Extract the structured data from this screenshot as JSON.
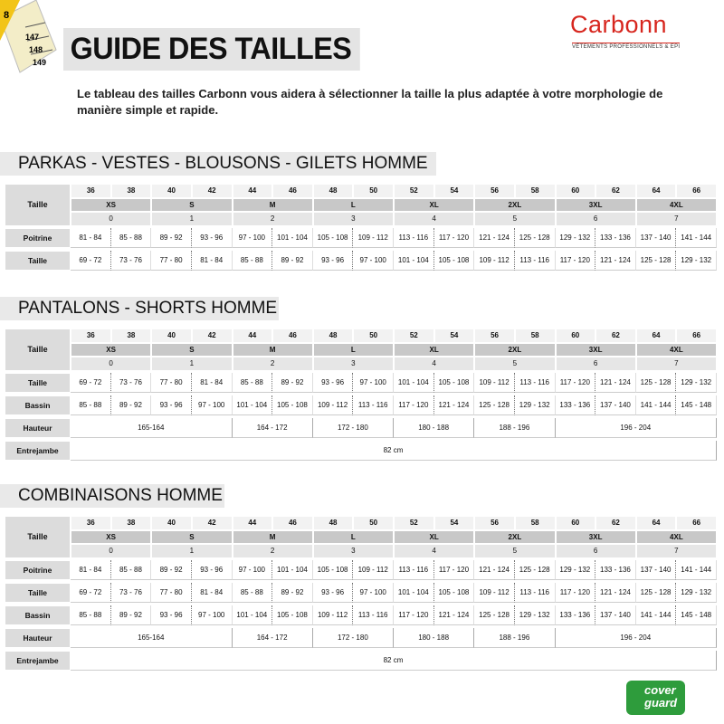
{
  "header": {
    "title": "GUIDE DES TAILLES",
    "intro": "Le tableau des tailles Carbonn vous aidera à sélectionner la taille la plus adaptée à votre morphologie de manière simple et rapide.",
    "logo": "Carbonn",
    "logo_sub": "VÊTEMENTS PROFESSIONNELS & EPI",
    "tape": [
      "8",
      "147",
      "148",
      "149"
    ]
  },
  "sections": [
    {
      "title": "PARKAS - VESTES - BLOUSONS - GILETS HOMME",
      "size_label": "Taille",
      "sizes": [
        36,
        38,
        40,
        42,
        44,
        46,
        48,
        50,
        52,
        54,
        56,
        58,
        60,
        62,
        64,
        66
      ],
      "letters": [
        "XS",
        "S",
        "M",
        "L",
        "XL",
        "2XL",
        "3XL",
        "4XL"
      ],
      "groups": [
        0,
        1,
        2,
        3,
        4,
        5,
        6,
        7
      ],
      "rows": [
        {
          "label": "Poitrine",
          "values": [
            "81 - 84",
            "85 - 88",
            "89 - 92",
            "93 - 96",
            "97 - 100",
            "101 - 104",
            "105 - 108",
            "109 - 112",
            "113 - 116",
            "117 - 120",
            "121 - 124",
            "125 - 128",
            "129 - 132",
            "133 - 136",
            "137 - 140",
            "141 - 144"
          ]
        },
        {
          "label": "Taille",
          "values": [
            "69 - 72",
            "73 - 76",
            "77 - 80",
            "81 - 84",
            "85 - 88",
            "89 - 92",
            "93 - 96",
            "97 - 100",
            "101 - 104",
            "105 - 108",
            "109 - 112",
            "113 - 116",
            "117 - 120",
            "121 - 124",
            "125 - 128",
            "129 - 132"
          ]
        }
      ]
    },
    {
      "title": "PANTALONS - SHORTS HOMME",
      "size_label": "Taille",
      "sizes": [
        36,
        38,
        40,
        42,
        44,
        46,
        48,
        50,
        52,
        54,
        56,
        58,
        60,
        62,
        64,
        66
      ],
      "letters": [
        "XS",
        "S",
        "M",
        "L",
        "XL",
        "2XL",
        "3XL",
        "4XL"
      ],
      "groups": [
        0,
        1,
        2,
        3,
        4,
        5,
        6,
        7
      ],
      "rows": [
        {
          "label": "Taille",
          "values": [
            "69 - 72",
            "73 - 76",
            "77 - 80",
            "81 - 84",
            "85 - 88",
            "89 - 92",
            "93 - 96",
            "97 - 100",
            "101 - 104",
            "105 - 108",
            "109 - 112",
            "113 - 116",
            "117 - 120",
            "121 - 124",
            "125 - 128",
            "129 - 132"
          ]
        },
        {
          "label": "Bassin",
          "values": [
            "85 - 88",
            "89 - 92",
            "93 - 96",
            "97 - 100",
            "101 - 104",
            "105 - 108",
            "109 - 112",
            "113 - 116",
            "117 - 120",
            "121 - 124",
            "125 - 128",
            "129 - 132",
            "133 - 136",
            "137 - 140",
            "141 - 144",
            "145 - 148"
          ]
        },
        {
          "label": "Hauteur",
          "cells": [
            {
              "text": "165-164",
              "span": 4
            },
            {
              "text": "164 - 172",
              "span": 2
            },
            {
              "text": "172 - 180",
              "span": 2
            },
            {
              "text": "180 - 188",
              "span": 2
            },
            {
              "text": "188 - 196",
              "span": 2
            },
            {
              "text": "196 - 204",
              "span": 4
            }
          ]
        },
        {
          "label": "Entrejambe",
          "cells": [
            {
              "text": "82 cm",
              "span": 16
            }
          ]
        }
      ]
    },
    {
      "title": "COMBINAISONS HOMME",
      "size_label": "Taille",
      "sizes": [
        36,
        38,
        40,
        42,
        44,
        46,
        48,
        50,
        52,
        54,
        56,
        58,
        60,
        62,
        64,
        66
      ],
      "letters": [
        "XS",
        "S",
        "M",
        "L",
        "XL",
        "2XL",
        "3XL",
        "4XL"
      ],
      "groups": [
        0,
        1,
        2,
        3,
        4,
        5,
        6,
        7
      ],
      "rows": [
        {
          "label": "Poitrine",
          "values": [
            "81 - 84",
            "85 - 88",
            "89 - 92",
            "93 - 96",
            "97 - 100",
            "101 - 104",
            "105 - 108",
            "109 - 112",
            "113 - 116",
            "117 - 120",
            "121 - 124",
            "125 - 128",
            "129 - 132",
            "133 - 136",
            "137 - 140",
            "141 - 144"
          ]
        },
        {
          "label": "Taille",
          "values": [
            "69 - 72",
            "73 - 76",
            "77 - 80",
            "81 - 84",
            "85 - 88",
            "89 - 92",
            "93 - 96",
            "97 - 100",
            "101 - 104",
            "105 - 108",
            "109 - 112",
            "113 - 116",
            "117 - 120",
            "121 - 124",
            "125 - 128",
            "129 - 132"
          ]
        },
        {
          "label": "Bassin",
          "values": [
            "85 - 88",
            "89 - 92",
            "93 - 96",
            "97 - 100",
            "101 - 104",
            "105 - 108",
            "109 - 112",
            "113 - 116",
            "117 - 120",
            "121 - 124",
            "125 - 128",
            "129 - 132",
            "133 - 136",
            "137 - 140",
            "141 - 144",
            "145 - 148"
          ]
        },
        {
          "label": "Hauteur",
          "cells": [
            {
              "text": "165-164",
              "span": 4
            },
            {
              "text": "164 - 172",
              "span": 2
            },
            {
              "text": "172 - 180",
              "span": 2
            },
            {
              "text": "180 - 188",
              "span": 2
            },
            {
              "text": "188 - 196",
              "span": 2
            },
            {
              "text": "196 - 204",
              "span": 4
            }
          ]
        },
        {
          "label": "Entrejambe",
          "cells": [
            {
              "text": "82 cm",
              "span": 16
            }
          ]
        }
      ]
    }
  ],
  "footer": {
    "logo_top": "cover",
    "logo_bottom": "guard"
  }
}
